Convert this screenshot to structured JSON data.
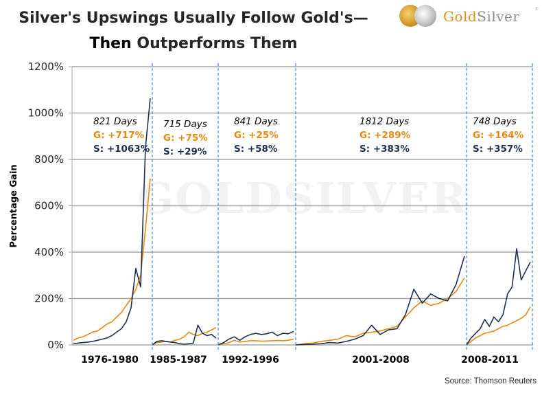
{
  "header": {
    "title_line1": "Silver's Upswings Usually Follow Gold's—",
    "title_line2_bold": "Then",
    "title_line2_rest": " Outperforms Them",
    "logo": {
      "icon": "gold-silver-coins-icon",
      "word_gold": "Gold",
      "word_silver": "Silver",
      "trademark": "®"
    }
  },
  "footer": {
    "source": "Source: Thomson Reuters"
  },
  "colors": {
    "gold": "#E8870E",
    "silver": "#1F2F4F",
    "grid": "#A6A6A6",
    "divider": "#4A86C8",
    "text": "#262626",
    "watermark": "#F2F2F2"
  },
  "chart_data": {
    "type": "line",
    "title": "Silver's Upswings Usually Follow Gold's—Then Outperforms Them",
    "xlabel": "",
    "ylabel": "Percentage Gain",
    "ylim": [
      0,
      1200
    ],
    "yticks": [
      "0%",
      "200%",
      "400%",
      "600%",
      "800%",
      "1000%",
      "1200%"
    ],
    "grid": true,
    "legend": "none",
    "watermark": "GoldSilver",
    "periods": [
      {
        "label": "1976-1980",
        "days": "821 Days",
        "gold_label": "G: +717%",
        "silver_label": "S: +1063%",
        "gold": [
          20,
          30,
          35,
          45,
          55,
          60,
          75,
          90,
          100,
          120,
          140,
          170,
          200,
          240,
          300,
          500,
          717
        ],
        "silver": [
          5,
          8,
          10,
          12,
          15,
          20,
          25,
          30,
          40,
          55,
          70,
          100,
          160,
          330,
          250,
          850,
          1063
        ]
      },
      {
        "label": "1985-1987",
        "days": "715 Days",
        "gold_label": "G: +75%",
        "silver_label": "S: +29%",
        "gold": [
          0,
          10,
          12,
          15,
          12,
          20,
          25,
          35,
          55,
          45,
          40,
          50,
          55,
          65,
          75
        ],
        "silver": [
          0,
          15,
          18,
          15,
          12,
          10,
          5,
          3,
          5,
          8,
          85,
          50,
          40,
          45,
          29
        ]
      },
      {
        "label": "1992-1996",
        "days": "841 Days",
        "gold_label": "G: +25%",
        "silver_label": "S: +58%",
        "gold": [
          0,
          5,
          10,
          20,
          12,
          15,
          18,
          18,
          16,
          17,
          18,
          19,
          18,
          20,
          25
        ],
        "silver": [
          0,
          10,
          25,
          35,
          20,
          35,
          45,
          50,
          45,
          48,
          55,
          40,
          50,
          48,
          58
        ]
      },
      {
        "label": "2001-2008",
        "days": "1812 Days",
        "gold_label": "G: +289%",
        "silver_label": "S: +383%",
        "gold": [
          0,
          5,
          8,
          15,
          20,
          25,
          40,
          35,
          50,
          55,
          60,
          70,
          80,
          120,
          160,
          190,
          170,
          180,
          200,
          230,
          289
        ],
        "silver": [
          0,
          2,
          3,
          5,
          10,
          8,
          15,
          25,
          40,
          85,
          45,
          65,
          70,
          130,
          240,
          180,
          220,
          200,
          190,
          260,
          383
        ]
      },
      {
        "label": "2008-2011",
        "days": "748 Days",
        "gold_label": "G: +164%",
        "silver_label": "S: +357%",
        "gold": [
          0,
          15,
          30,
          40,
          50,
          55,
          60,
          70,
          80,
          85,
          95,
          105,
          115,
          130,
          164
        ],
        "silver": [
          0,
          30,
          50,
          70,
          110,
          80,
          120,
          100,
          130,
          220,
          250,
          415,
          280,
          320,
          357
        ]
      }
    ]
  }
}
